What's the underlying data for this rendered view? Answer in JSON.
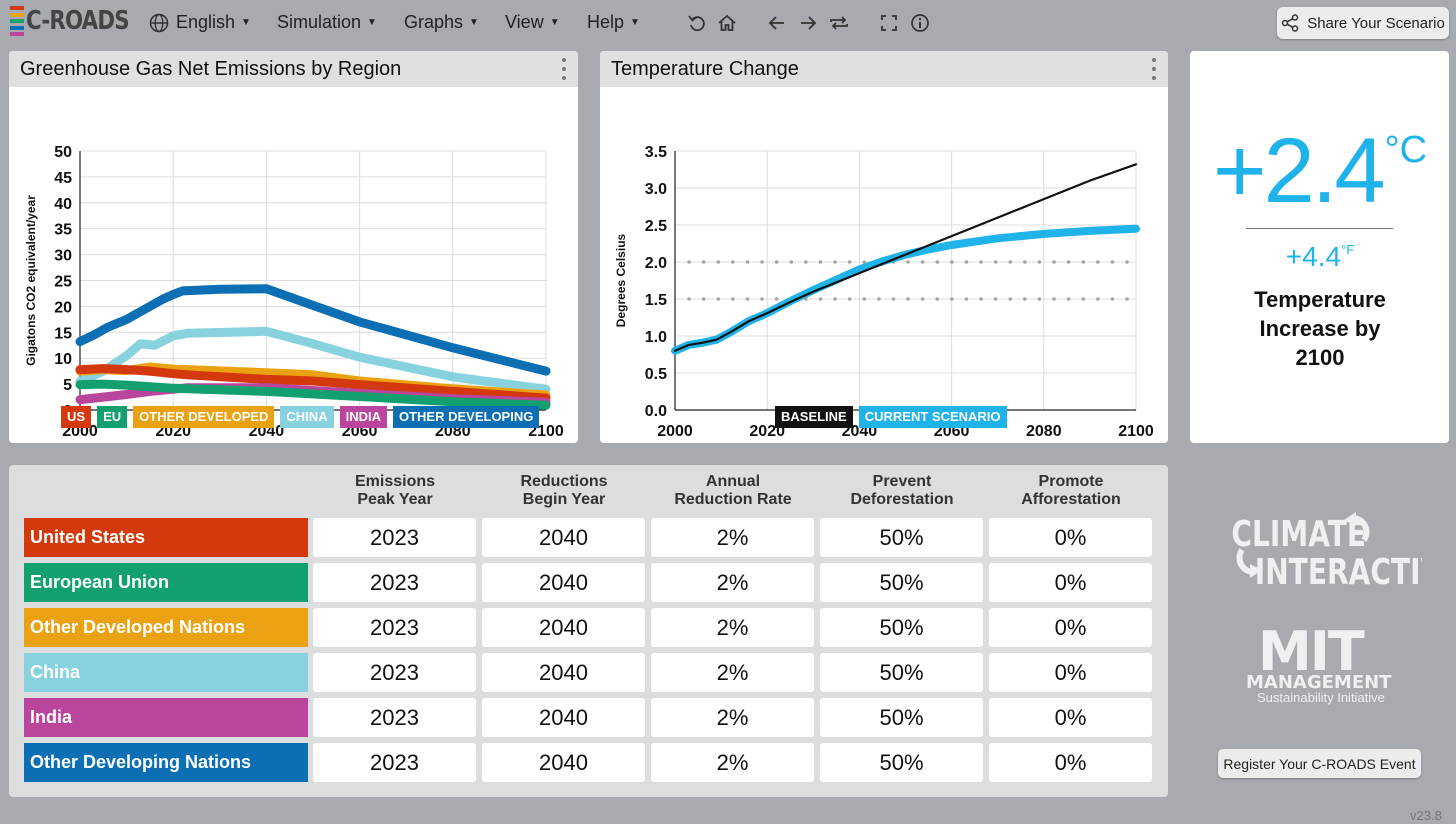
{
  "app": {
    "logo_text": "C-ROADS",
    "version": "v23.8"
  },
  "menu": {
    "language": "English",
    "simulation": "Simulation",
    "graphs": "Graphs",
    "view": "View",
    "help": "Help"
  },
  "toolbar_icons": [
    "undo-icon",
    "home-icon",
    "back-arrow-icon",
    "forward-arrow-icon",
    "repeat-icon",
    "fullscreen-icon",
    "info-icon"
  ],
  "share_button": "Share Your Scenario",
  "emissions_chart": {
    "title": "Greenhouse Gas Net Emissions by Region",
    "chart_data": {
      "type": "line",
      "title": "Greenhouse Gas Net Emissions by Region",
      "ylabel": "Gigatons CO2 equivalent/year",
      "xlabel": "",
      "xlim": [
        2000,
        2100
      ],
      "ylim": [
        0,
        50
      ],
      "x_ticks": [
        "2000",
        "2020",
        "2040",
        "2060",
        "2080",
        "2100"
      ],
      "y_ticks": [
        "0",
        "5",
        "10",
        "15",
        "20",
        "25",
        "30",
        "35",
        "40",
        "45",
        "50"
      ],
      "grid": true,
      "legend_position": "bottom",
      "series": [
        {
          "name": "US",
          "color": "#d4380d",
          "points": [
            [
              2000,
              7.8
            ],
            [
              2005,
              8.0
            ],
            [
              2010,
              7.8
            ],
            [
              2015,
              7.5
            ],
            [
              2020,
              7.0
            ],
            [
              2023,
              6.8
            ],
            [
              2040,
              5.9
            ],
            [
              2050,
              5.6
            ],
            [
              2060,
              4.9
            ],
            [
              2080,
              3.6
            ],
            [
              2100,
              2.3
            ]
          ]
        },
        {
          "name": "EU",
          "color": "#12a06e",
          "points": [
            [
              2000,
              4.9
            ],
            [
              2005,
              5.0
            ],
            [
              2010,
              4.8
            ],
            [
              2015,
              4.5
            ],
            [
              2020,
              4.2
            ],
            [
              2023,
              4.1
            ],
            [
              2040,
              3.6
            ],
            [
              2060,
              2.6
            ],
            [
              2080,
              1.6
            ],
            [
              2100,
              0.9
            ]
          ]
        },
        {
          "name": "OTHER DEVELOPED",
          "color": "#eba212",
          "points": [
            [
              2000,
              7.5
            ],
            [
              2005,
              7.8
            ],
            [
              2010,
              7.6
            ],
            [
              2015,
              8.3
            ],
            [
              2020,
              7.9
            ],
            [
              2023,
              7.8
            ],
            [
              2040,
              7.2
            ],
            [
              2050,
              6.8
            ],
            [
              2060,
              5.6
            ],
            [
              2080,
              4.1
            ],
            [
              2100,
              2.9
            ]
          ]
        },
        {
          "name": "CHINA",
          "color": "#88d2df",
          "points": [
            [
              2000,
              5.5
            ],
            [
              2005,
              7.5
            ],
            [
              2010,
              10.5
            ],
            [
              2013,
              12.8
            ],
            [
              2016,
              12.5
            ],
            [
              2020,
              14.3
            ],
            [
              2023,
              14.8
            ],
            [
              2040,
              15.2
            ],
            [
              2050,
              12.8
            ],
            [
              2060,
              10.2
            ],
            [
              2080,
              6.4
            ],
            [
              2100,
              4.0
            ]
          ]
        },
        {
          "name": "INDIA",
          "color": "#b9459c",
          "points": [
            [
              2000,
              2.0
            ],
            [
              2005,
              2.5
            ],
            [
              2010,
              3.0
            ],
            [
              2015,
              3.6
            ],
            [
              2020,
              4.0
            ],
            [
              2023,
              4.3
            ],
            [
              2040,
              4.3
            ],
            [
              2060,
              3.2
            ],
            [
              2080,
              2.2
            ],
            [
              2100,
              1.5
            ]
          ]
        },
        {
          "name": "OTHER DEVELOPING",
          "color": "#0c6fb4",
          "points": [
            [
              2000,
              13.2
            ],
            [
              2003,
              14.5
            ],
            [
              2006,
              16.0
            ],
            [
              2010,
              17.5
            ],
            [
              2014,
              19.5
            ],
            [
              2018,
              21.5
            ],
            [
              2020,
              22.3
            ],
            [
              2022,
              23.0
            ],
            [
              2030,
              23.3
            ],
            [
              2040,
              23.4
            ],
            [
              2050,
              20.2
            ],
            [
              2060,
              17.0
            ],
            [
              2080,
              12.0
            ],
            [
              2100,
              7.5
            ]
          ]
        }
      ]
    }
  },
  "temperature_chart": {
    "title": "Temperature Change",
    "chart_data": {
      "type": "line",
      "title": "Temperature Change",
      "ylabel": "Degrees Celsius",
      "xlabel": "",
      "xlim": [
        2000,
        2100
      ],
      "ylim": [
        0,
        3.5
      ],
      "x_ticks": [
        "2000",
        "2020",
        "2040",
        "2060",
        "2080",
        "2100"
      ],
      "y_ticks": [
        "0.0",
        "0.5",
        "1.0",
        "1.5",
        "2.0",
        "2.5",
        "3.0",
        "3.5"
      ],
      "grid": true,
      "reference_lines": [
        1.5,
        2.0
      ],
      "legend_position": "bottom",
      "series": [
        {
          "name": "CURRENT SCENARIO",
          "color": "#1fb3ea",
          "points": [
            [
              2000,
              0.8
            ],
            [
              2003,
              0.88
            ],
            [
              2006,
              0.91
            ],
            [
              2009,
              0.95
            ],
            [
              2012,
              1.05
            ],
            [
              2016,
              1.2
            ],
            [
              2020,
              1.31
            ],
            [
              2025,
              1.47
            ],
            [
              2030,
              1.62
            ],
            [
              2035,
              1.76
            ],
            [
              2040,
              1.9
            ],
            [
              2045,
              2.01
            ],
            [
              2050,
              2.1
            ],
            [
              2055,
              2.17
            ],
            [
              2060,
              2.23
            ],
            [
              2070,
              2.32
            ],
            [
              2080,
              2.38
            ],
            [
              2090,
              2.42
            ],
            [
              2100,
              2.45
            ]
          ]
        },
        {
          "name": "BASELINE",
          "color": "#111111",
          "points": [
            [
              2000,
              0.8
            ],
            [
              2003,
              0.88
            ],
            [
              2006,
              0.91
            ],
            [
              2009,
              0.95
            ],
            [
              2012,
              1.05
            ],
            [
              2016,
              1.2
            ],
            [
              2020,
              1.31
            ],
            [
              2025,
              1.46
            ],
            [
              2030,
              1.6
            ],
            [
              2040,
              1.85
            ],
            [
              2050,
              2.1
            ],
            [
              2060,
              2.35
            ],
            [
              2070,
              2.6
            ],
            [
              2080,
              2.85
            ],
            [
              2090,
              3.1
            ],
            [
              2100,
              3.32
            ]
          ]
        }
      ]
    }
  },
  "temperature_card": {
    "celsius": "+2.4",
    "celsius_unit": "°C",
    "fahrenheit": "+4.4",
    "fahrenheit_unit": "°F",
    "label_line1": "Temperature",
    "label_line2": "Increase by",
    "label_line3": "2100"
  },
  "table": {
    "columns": [
      {
        "line1": "Emissions",
        "line2": "Peak Year"
      },
      {
        "line1": "Reductions",
        "line2": "Begin Year"
      },
      {
        "line1": "Annual",
        "line2": "Reduction Rate"
      },
      {
        "line1": "Prevent",
        "line2": "Deforestation"
      },
      {
        "line1": "Promote",
        "line2": "Afforestation"
      }
    ],
    "rows": [
      {
        "label": "United States",
        "color": "#d4380d",
        "values": [
          "2023",
          "2040",
          "2%",
          "50%",
          "0%"
        ]
      },
      {
        "label": "European Union",
        "color": "#12a06e",
        "values": [
          "2023",
          "2040",
          "2%",
          "50%",
          "0%"
        ]
      },
      {
        "label": "Other Developed Nations",
        "color": "#eba212",
        "values": [
          "2023",
          "2040",
          "2%",
          "50%",
          "0%"
        ]
      },
      {
        "label": "China",
        "color": "#88d2df",
        "values": [
          "2023",
          "2040",
          "2%",
          "50%",
          "0%"
        ]
      },
      {
        "label": "India",
        "color": "#b9459c",
        "values": [
          "2023",
          "2040",
          "2%",
          "50%",
          "0%"
        ]
      },
      {
        "label": "Other Developing Nations",
        "color": "#0c6fb4",
        "values": [
          "2023",
          "2040",
          "2%",
          "50%",
          "0%"
        ]
      }
    ]
  },
  "logos": {
    "climate_interactive_line1": "CLIMATE",
    "climate_interactive_line2": "INTERACTIVE",
    "mit_line1": "MIT",
    "mit_line2": "MANAGEMENT",
    "mit_line3": "Sustainability Initiative"
  },
  "register_button": "Register Your C-ROADS Event"
}
